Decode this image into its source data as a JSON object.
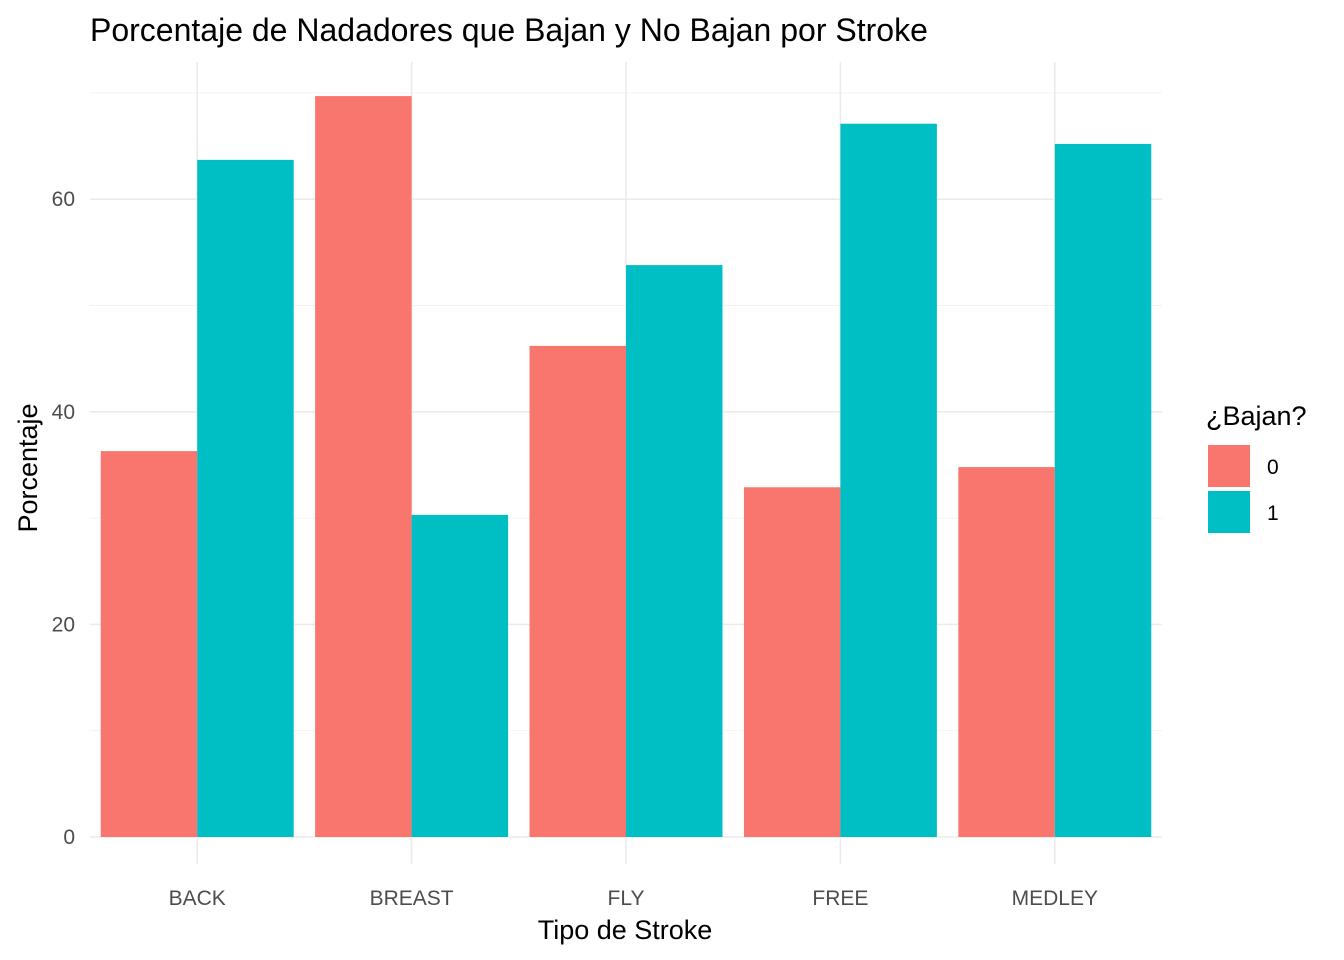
{
  "chart_data": {
    "type": "bar",
    "title": "Porcentaje de Nadadores que Bajan y No Bajan por Stroke",
    "xlabel": "Tipo de Stroke",
    "ylabel": "Porcentaje",
    "categories": [
      "BACK",
      "BREAST",
      "FLY",
      "FREE",
      "MEDLEY"
    ],
    "series": [
      {
        "name": "0",
        "color": "#F8766D",
        "values": [
          36.3,
          69.7,
          46.2,
          32.9,
          34.8
        ]
      },
      {
        "name": "1",
        "color": "#00BFC4",
        "values": [
          63.7,
          30.3,
          53.8,
          67.1,
          65.2
        ]
      }
    ],
    "ylim": [
      0,
      73.2
    ],
    "yticks": [
      0,
      20,
      40,
      60
    ],
    "ytick_labels": [
      "0",
      "20",
      "40",
      "60"
    ],
    "grid": true,
    "legend": {
      "title": "¿Bajan?",
      "placement": "right"
    }
  }
}
